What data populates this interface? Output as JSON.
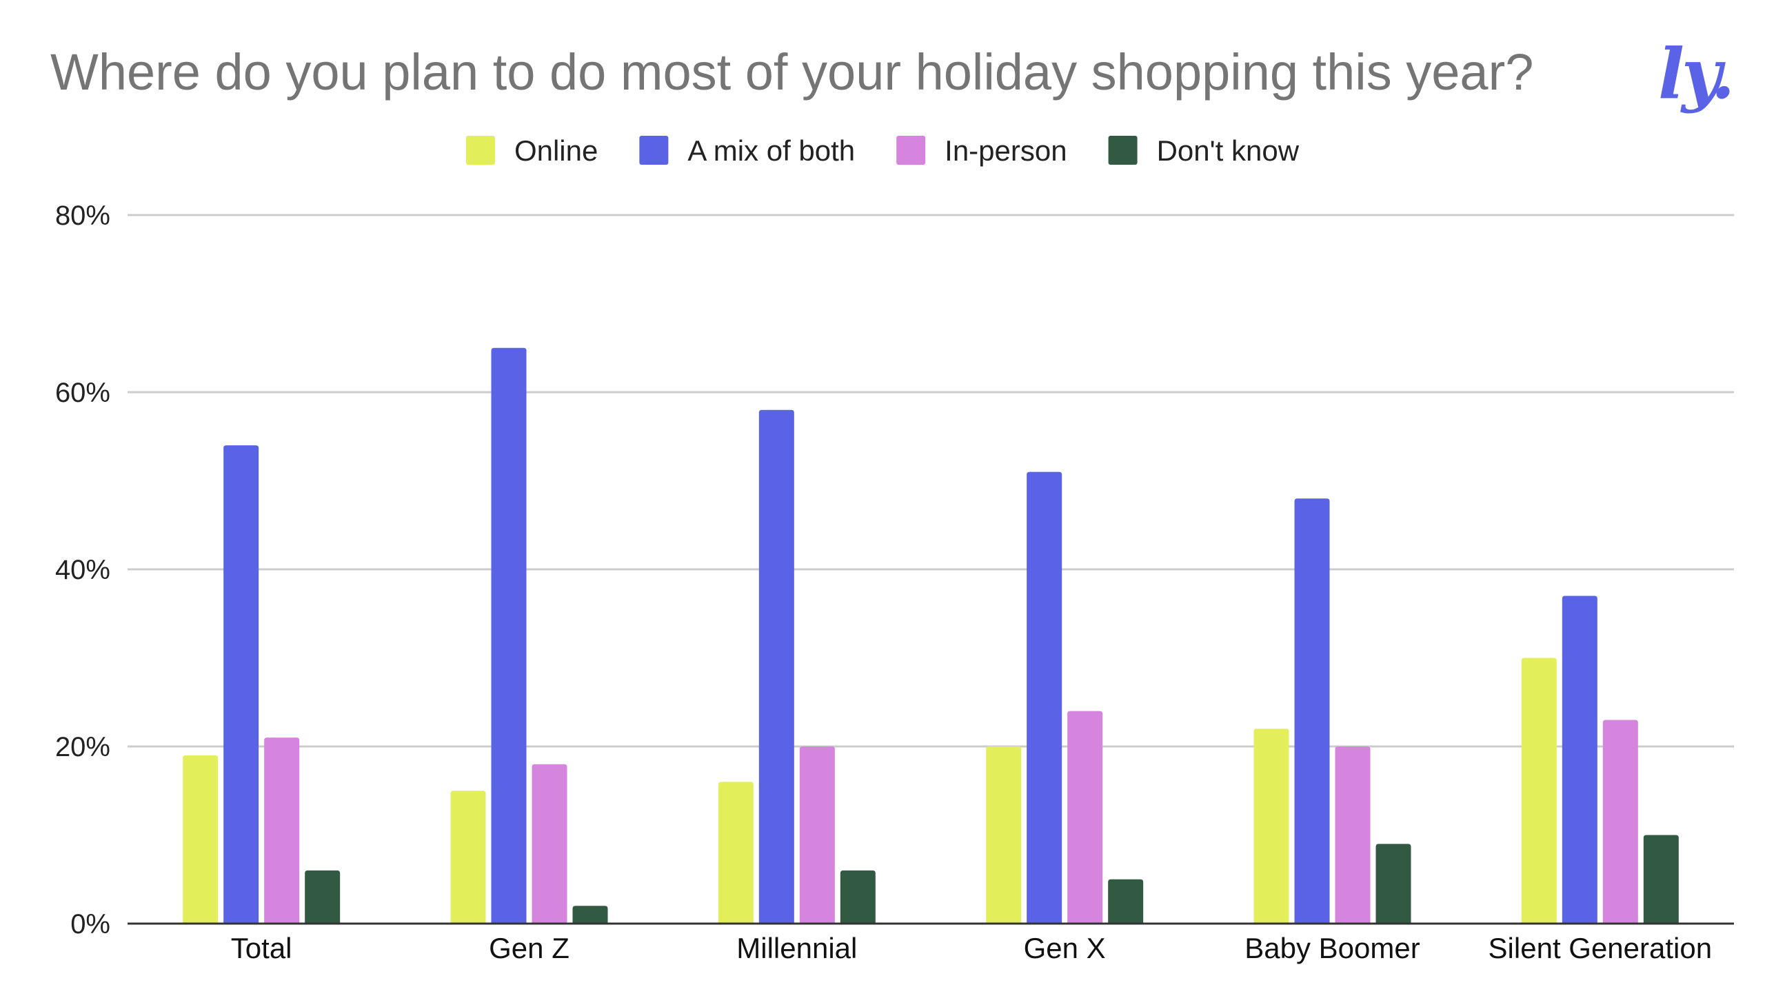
{
  "brand": {
    "logo_text": "ly."
  },
  "chart_data": {
    "type": "bar",
    "title": "Where do you plan to do most of your holiday shopping this year?",
    "xlabel": "",
    "ylabel": "",
    "categories": [
      "Total",
      "Gen Z",
      "Millennial",
      "Gen X",
      "Baby Boomer",
      "Silent Generation"
    ],
    "series": [
      {
        "name": "Online",
        "color": "#e3ef5a",
        "values": [
          19,
          15,
          16,
          20,
          22,
          30
        ]
      },
      {
        "name": "A mix of both",
        "color": "#5a63e6",
        "values": [
          54,
          65,
          58,
          51,
          48,
          37
        ]
      },
      {
        "name": "In-person",
        "color": "#d585dd",
        "values": [
          21,
          18,
          20,
          24,
          20,
          23
        ]
      },
      {
        "name": "Don't know",
        "color": "#325942",
        "values": [
          6,
          2,
          6,
          5,
          9,
          10
        ]
      }
    ],
    "ylim": [
      0,
      80
    ],
    "yticks": [
      0,
      20,
      40,
      60,
      80
    ],
    "ytick_labels": [
      "0%",
      "20%",
      "40%",
      "60%",
      "80%"
    ],
    "grid": true,
    "legend_position": "top-center"
  }
}
